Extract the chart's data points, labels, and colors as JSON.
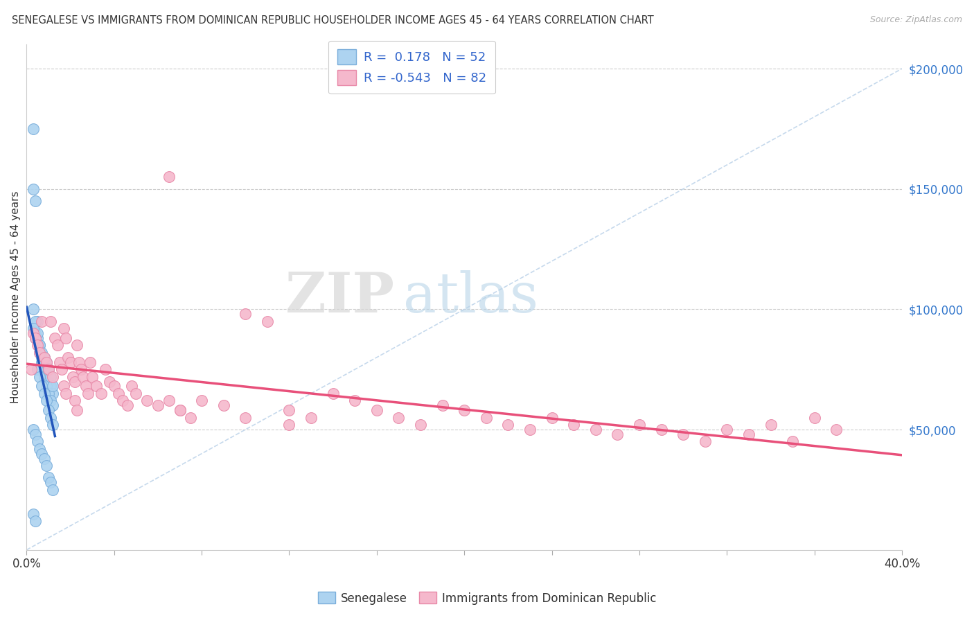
{
  "title": "SENEGALESE VS IMMIGRANTS FROM DOMINICAN REPUBLIC HOUSEHOLDER INCOME AGES 45 - 64 YEARS CORRELATION CHART",
  "source": "Source: ZipAtlas.com",
  "ylabel": "Householder Income Ages 45 - 64 years",
  "xlim": [
    0.0,
    0.4
  ],
  "ylim": [
    0,
    210000
  ],
  "yticks_right": [
    50000,
    100000,
    150000,
    200000
  ],
  "ytick_labels_right": [
    "$50,000",
    "$100,000",
    "$150,000",
    "$200,000"
  ],
  "senegalese_color": "#add3f0",
  "senegalese_edge": "#7aaedb",
  "dominican_color": "#f5b8cc",
  "dominican_edge": "#e889a8",
  "blue_line_color": "#2255bb",
  "pink_line_color": "#e8507a",
  "diagonal_color": "#b8d0e8",
  "watermark_zip": "ZIP",
  "watermark_atlas": "atlas",
  "R_senegalese": 0.178,
  "N_senegalese": 52,
  "R_dominican": -0.543,
  "N_dominican": 82,
  "sen_x": [
    0.003,
    0.004,
    0.005,
    0.006,
    0.007,
    0.008,
    0.009,
    0.01,
    0.011,
    0.012,
    0.003,
    0.004,
    0.005,
    0.006,
    0.007,
    0.008,
    0.009,
    0.01,
    0.011,
    0.012,
    0.003,
    0.004,
    0.005,
    0.006,
    0.007,
    0.008,
    0.009,
    0.01,
    0.011,
    0.012,
    0.003,
    0.004,
    0.005,
    0.006,
    0.007,
    0.008,
    0.009,
    0.01,
    0.011,
    0.012,
    0.003,
    0.004,
    0.005,
    0.006,
    0.007,
    0.008,
    0.009,
    0.01,
    0.011,
    0.012,
    0.003,
    0.004
  ],
  "sen_y": [
    175000,
    90000,
    95000,
    85000,
    80000,
    78000,
    75000,
    70000,
    68000,
    65000,
    150000,
    145000,
    88000,
    82000,
    78000,
    72000,
    68000,
    65000,
    62000,
    60000,
    100000,
    95000,
    90000,
    85000,
    82000,
    80000,
    78000,
    75000,
    72000,
    68000,
    92000,
    88000,
    75000,
    72000,
    68000,
    65000,
    62000,
    58000,
    55000,
    52000,
    50000,
    48000,
    45000,
    42000,
    40000,
    38000,
    35000,
    30000,
    28000,
    25000,
    15000,
    12000
  ],
  "dom_x": [
    0.002,
    0.003,
    0.004,
    0.005,
    0.006,
    0.007,
    0.008,
    0.009,
    0.01,
    0.011,
    0.012,
    0.013,
    0.014,
    0.015,
    0.016,
    0.017,
    0.018,
    0.019,
    0.02,
    0.021,
    0.022,
    0.023,
    0.024,
    0.025,
    0.026,
    0.027,
    0.028,
    0.029,
    0.03,
    0.032,
    0.034,
    0.036,
    0.038,
    0.04,
    0.042,
    0.044,
    0.046,
    0.048,
    0.05,
    0.055,
    0.06,
    0.065,
    0.07,
    0.075,
    0.08,
    0.09,
    0.1,
    0.11,
    0.12,
    0.13,
    0.14,
    0.15,
    0.16,
    0.17,
    0.18,
    0.19,
    0.2,
    0.21,
    0.22,
    0.23,
    0.24,
    0.25,
    0.26,
    0.27,
    0.28,
    0.29,
    0.3,
    0.31,
    0.32,
    0.33,
    0.34,
    0.35,
    0.36,
    0.37,
    0.017,
    0.018,
    0.022,
    0.023,
    0.065,
    0.07,
    0.1,
    0.12
  ],
  "dom_y": [
    75000,
    90000,
    88000,
    85000,
    82000,
    95000,
    80000,
    78000,
    75000,
    95000,
    72000,
    88000,
    85000,
    78000,
    75000,
    92000,
    88000,
    80000,
    78000,
    72000,
    70000,
    85000,
    78000,
    75000,
    72000,
    68000,
    65000,
    78000,
    72000,
    68000,
    65000,
    75000,
    70000,
    68000,
    65000,
    62000,
    60000,
    68000,
    65000,
    62000,
    60000,
    155000,
    58000,
    55000,
    62000,
    60000,
    98000,
    95000,
    58000,
    55000,
    65000,
    62000,
    58000,
    55000,
    52000,
    60000,
    58000,
    55000,
    52000,
    50000,
    55000,
    52000,
    50000,
    48000,
    52000,
    50000,
    48000,
    45000,
    50000,
    48000,
    52000,
    45000,
    55000,
    50000,
    68000,
    65000,
    62000,
    58000,
    62000,
    58000,
    55000,
    52000
  ]
}
